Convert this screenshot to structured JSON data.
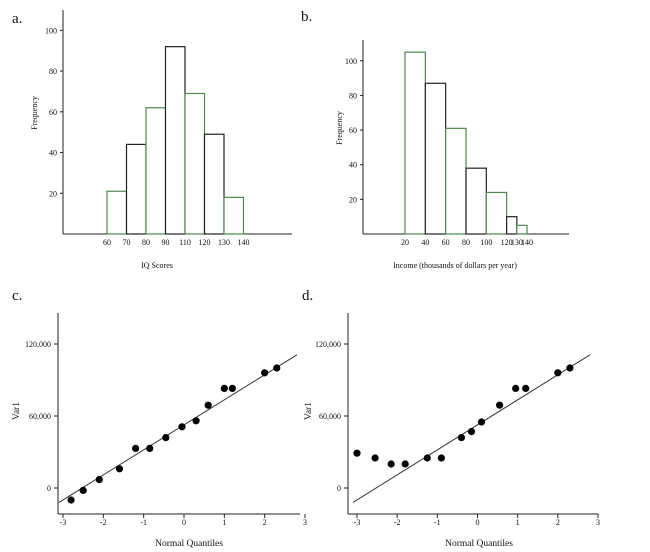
{
  "chart_data": [
    {
      "panel": "a.",
      "type": "bar",
      "subtype": "histogram",
      "categories": [
        "60-70",
        "70-80",
        "80-90",
        "90-100",
        "100-110",
        "110-120",
        "120-130",
        "130-140"
      ],
      "bin_edges": [
        60,
        70,
        80,
        90,
        100,
        110,
        120,
        130,
        140
      ],
      "values": [
        21,
        44,
        62,
        92,
        69,
        49,
        18,
        0
      ],
      "ylim": [
        0,
        110
      ],
      "yticks": [
        20,
        40,
        60,
        80,
        100
      ],
      "xtick_labels": [
        "60",
        "70",
        "80",
        "90",
        "110",
        "120",
        "130",
        "140"
      ],
      "xlabel": "IQ Scores",
      "ylabel": "Frequency"
    },
    {
      "panel": "b.",
      "type": "bar",
      "subtype": "histogram",
      "categories": [
        "20-40",
        "40-60",
        "60-80",
        "80-100",
        "100-120",
        "120-130",
        "130-140"
      ],
      "bin_edges": [
        20,
        40,
        60,
        80,
        100,
        120,
        130,
        140
      ],
      "values": [
        105,
        87,
        61,
        38,
        24,
        10,
        5
      ],
      "ylim": [
        0,
        112
      ],
      "yticks": [
        20,
        40,
        60,
        80,
        100
      ],
      "xtick_labels": [
        "20",
        "40",
        "60",
        "80",
        "100",
        "120",
        "130",
        "140"
      ],
      "xlabel": "Income (thousands of dollars per year)",
      "ylabel": "Frequency"
    },
    {
      "panel": "c.",
      "type": "scatter",
      "subtype": "normal-quantile-plot",
      "xlim": [
        -3.15,
        3.1
      ],
      "ylim": [
        -22000,
        145000
      ],
      "xticks": [
        -3,
        -2,
        -1,
        0,
        1,
        2,
        3
      ],
      "yticks": [
        0,
        60000,
        120000
      ],
      "ytick_labels": [
        "0",
        "60,000",
        "120,000"
      ],
      "xlabel": "Normal Quantiles",
      "ylabel": "Var1",
      "points": [
        {
          "x": -2.8,
          "y": -10000
        },
        {
          "x": -2.5,
          "y": -2000
        },
        {
          "x": -2.1,
          "y": 7000
        },
        {
          "x": -1.6,
          "y": 16000
        },
        {
          "x": -1.2,
          "y": 33000
        },
        {
          "x": -0.85,
          "y": 33000
        },
        {
          "x": -0.45,
          "y": 42000
        },
        {
          "x": -0.05,
          "y": 51000
        },
        {
          "x": 0.3,
          "y": 56000
        },
        {
          "x": 0.6,
          "y": 69000
        },
        {
          "x": 1.0,
          "y": 83000
        },
        {
          "x": 1.2,
          "y": 83000
        },
        {
          "x": 2.0,
          "y": 96000
        },
        {
          "x": 2.3,
          "y": 100000
        }
      ],
      "fit_line": {
        "x1": -3.1,
        "y1": -12000,
        "x2": 2.8,
        "y2": 111000
      }
    },
    {
      "panel": "d.",
      "type": "scatter",
      "subtype": "normal-quantile-plot",
      "xlim": [
        -3.15,
        3.1
      ],
      "ylim": [
        -22000,
        145000
      ],
      "xticks": [
        -3,
        -2,
        -1,
        0,
        1,
        2,
        3
      ],
      "yticks": [
        0,
        60000,
        120000
      ],
      "ytick_labels": [
        "0",
        "60,000",
        "120,000"
      ],
      "xlabel": "Normal Quantiles",
      "ylabel": "Var1",
      "points": [
        {
          "x": -3.0,
          "y": 29000
        },
        {
          "x": -2.55,
          "y": 25000
        },
        {
          "x": -2.15,
          "y": 20000
        },
        {
          "x": -1.8,
          "y": 20000
        },
        {
          "x": -1.25,
          "y": 25000
        },
        {
          "x": -0.9,
          "y": 25000
        },
        {
          "x": -0.4,
          "y": 42000
        },
        {
          "x": -0.15,
          "y": 47000
        },
        {
          "x": 0.1,
          "y": 55000
        },
        {
          "x": 0.55,
          "y": 69000
        },
        {
          "x": 0.95,
          "y": 83000
        },
        {
          "x": 1.2,
          "y": 83000
        },
        {
          "x": 2.0,
          "y": 96000
        },
        {
          "x": 2.3,
          "y": 100000
        }
      ],
      "fit_line": {
        "x1": -3.1,
        "y1": -12000,
        "x2": 2.8,
        "y2": 111000
      }
    }
  ]
}
